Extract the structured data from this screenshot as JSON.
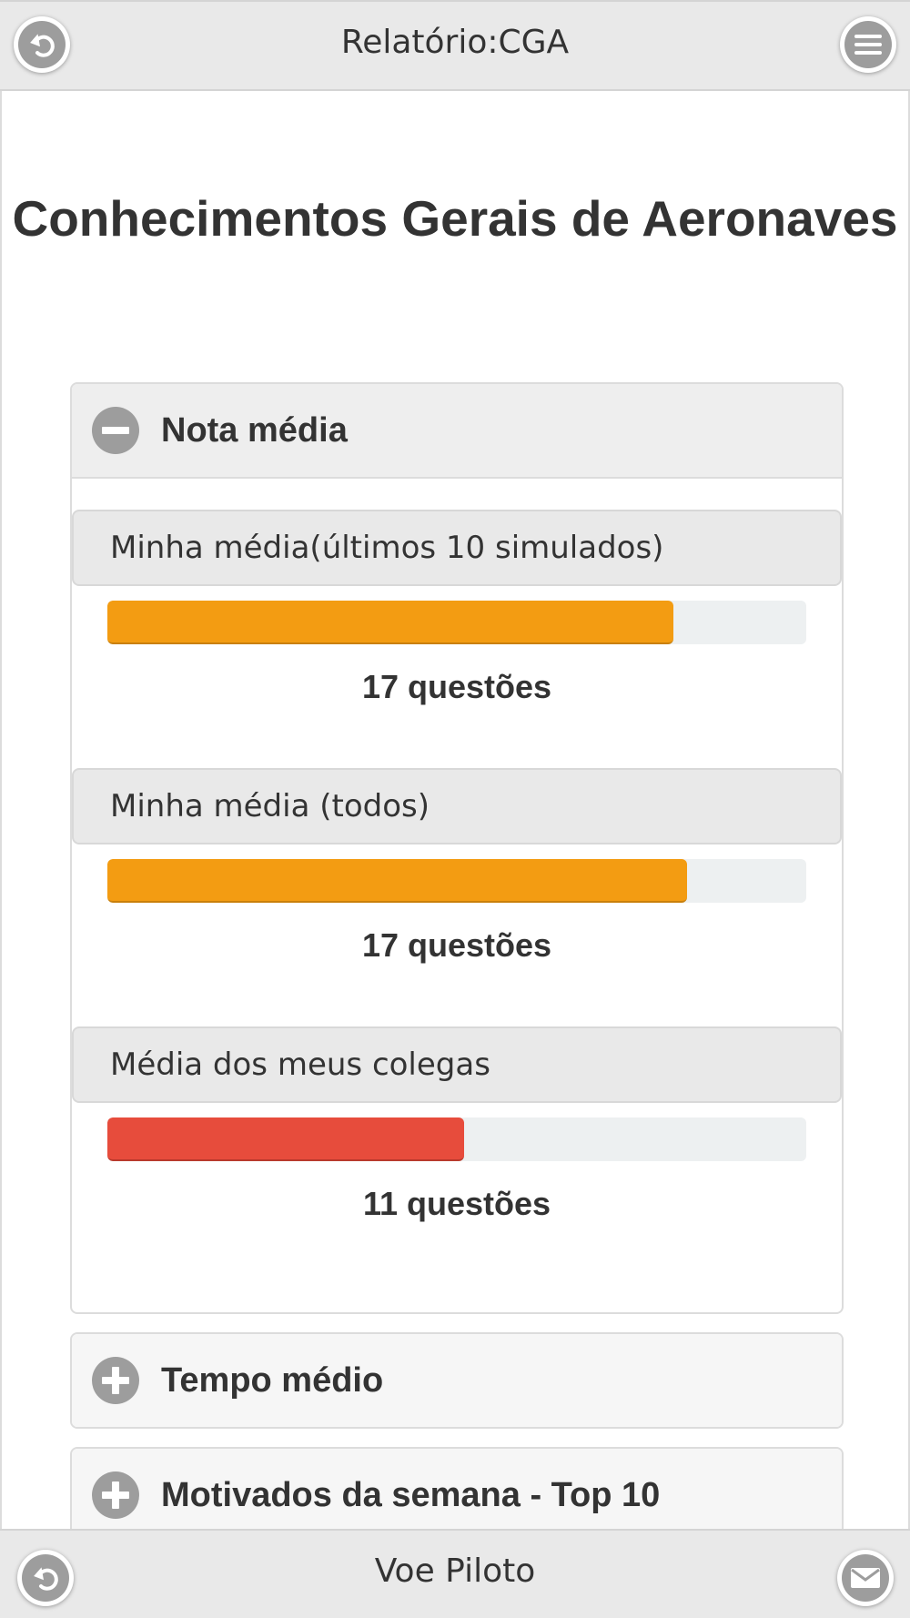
{
  "header": {
    "title": "Relatório:CGA",
    "back_icon": "back-arrow-icon",
    "menu_icon": "hamburger-menu-icon"
  },
  "page": {
    "title": "Conhecimentos Gerais de Aeronaves"
  },
  "sections": {
    "nota_media": {
      "label": "Nota média",
      "expanded": true,
      "items": [
        {
          "label": "Minha média(últimos 10 simulados)",
          "fill_fraction": 0.81,
          "color": "#f39c12",
          "count_text": "17 questões"
        },
        {
          "label": "Minha média (todos)",
          "fill_fraction": 0.83,
          "color": "#f39c12",
          "count_text": "17 questões"
        },
        {
          "label": "Média dos meus colegas",
          "fill_fraction": 0.51,
          "color": "#e74c3c",
          "count_text": "11 questões"
        }
      ]
    },
    "tempo_medio": {
      "label": "Tempo médio",
      "expanded": false
    },
    "top10": {
      "label": "Motivados da semana - Top 10",
      "expanded": false
    }
  },
  "footer": {
    "title": "Voe Piloto",
    "back_icon": "back-arrow-icon",
    "mail_icon": "mail-icon"
  }
}
